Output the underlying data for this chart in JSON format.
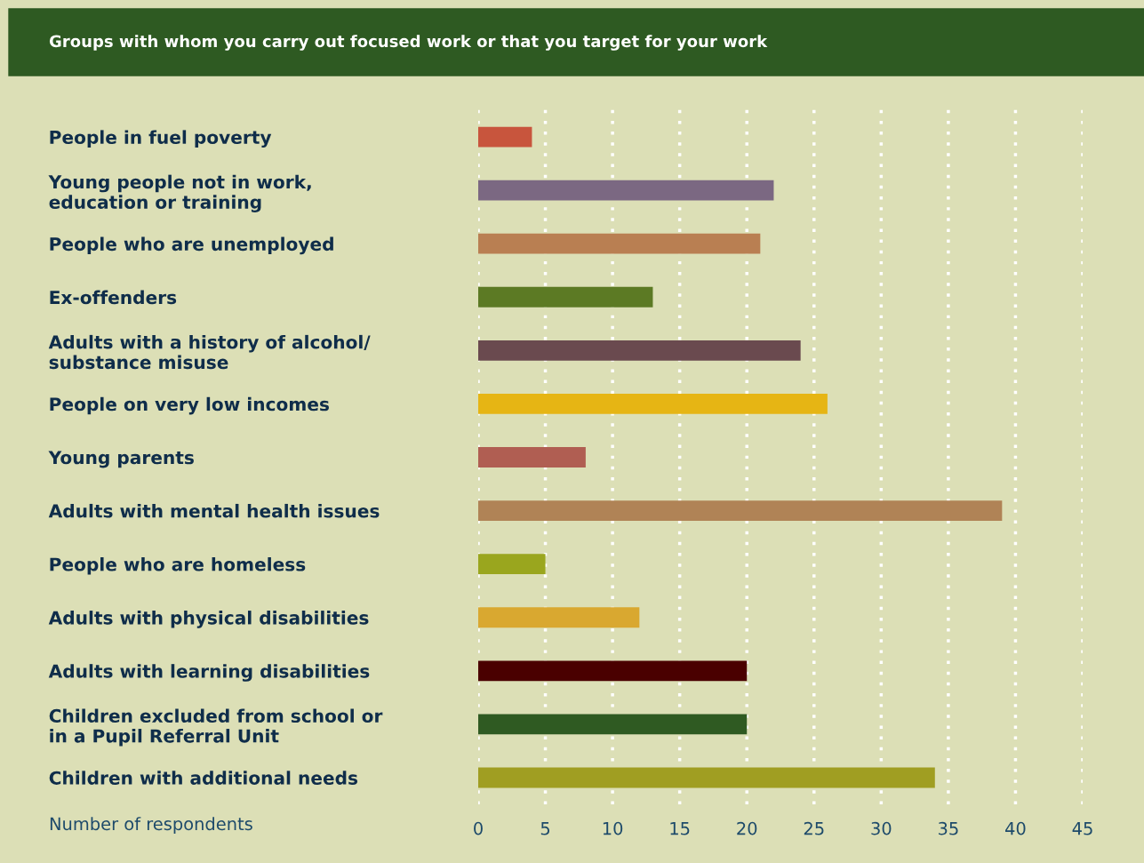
{
  "chart_data": {
    "type": "bar",
    "orientation": "horizontal",
    "title": "Groups with whom you carry out focused work or that you target for your work",
    "xlabel": "Number of respondents",
    "categories": [
      "People in fuel poverty",
      "Young people not in work,\neducation or training",
      "People who are unemployed",
      "Ex-offenders",
      "Adults with a history of alcohol/\nsubstance misuse",
      "People on very low incomes",
      "Young parents",
      "Adults with mental health issues",
      "People who are homeless",
      "Adults with physical disabilities",
      "Adults with learning disabilities",
      "Children excluded from school or\nin a Pupil Referral Unit",
      "Children with additional needs"
    ],
    "values": [
      4,
      22,
      21,
      13,
      24,
      26,
      8,
      39,
      5,
      12,
      20,
      20,
      34
    ],
    "colors": [
      "#c8553d",
      "#7b6882",
      "#b97f52",
      "#5c7a24",
      "#6a4a4f",
      "#e6b514",
      "#b05e52",
      "#b08356",
      "#9aa61e",
      "#d9a830",
      "#4a0000",
      "#2f5a22",
      "#a09e22"
    ],
    "xlim": [
      0,
      45
    ],
    "xticks": [
      0,
      5,
      10,
      15,
      20,
      25,
      30,
      35,
      40,
      45
    ],
    "grid": "x",
    "legend": false
  }
}
